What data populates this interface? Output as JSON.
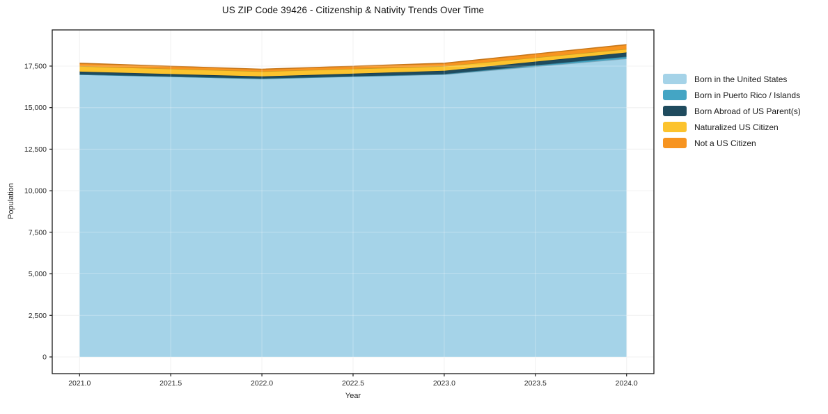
{
  "title": "US ZIP Code 39426 - Citizenship & Nativity Trends Over Time",
  "chart_data": {
    "type": "area",
    "stacked": true,
    "title": "US ZIP Code 39426 - Citizenship & Nativity Trends Over Time",
    "xlabel": "Year",
    "ylabel": "Population",
    "x": [
      2021,
      2022,
      2023,
      2024
    ],
    "series": [
      {
        "name": "Born in the United States",
        "color": "#a5d3e8",
        "values": [
          17000,
          16750,
          17000,
          17950
        ]
      },
      {
        "name": "Born in Puerto Rico / Islands",
        "color": "#44a5c4",
        "values": [
          0,
          0,
          20,
          120
        ]
      },
      {
        "name": "Born Abroad of US Parent(s)",
        "color": "#1f4b5e",
        "values": [
          170,
          130,
          200,
          250
        ]
      },
      {
        "name": "Naturalized US Citizen",
        "color": "#fcc32d",
        "values": [
          330,
          300,
          280,
          210
        ]
      },
      {
        "name": "Not a US Citizen",
        "color": "#f79420",
        "values": [
          170,
          130,
          170,
          260
        ]
      }
    ],
    "xlim": [
      2020.85,
      2024.15
    ],
    "ylim": [
      -1005,
      19676
    ],
    "x_ticks": [
      {
        "v": 2021.0,
        "label": "2021.0"
      },
      {
        "v": 2021.5,
        "label": "2021.5"
      },
      {
        "v": 2022.0,
        "label": "2022.0"
      },
      {
        "v": 2022.5,
        "label": "2022.5"
      },
      {
        "v": 2023.0,
        "label": "2023.0"
      },
      {
        "v": 2023.5,
        "label": "2023.5"
      },
      {
        "v": 2024.0,
        "label": "2024.0"
      }
    ],
    "y_ticks": [
      {
        "v": 0,
        "label": "0"
      },
      {
        "v": 2500,
        "label": "2,500"
      },
      {
        "v": 5000,
        "label": "5,000"
      },
      {
        "v": 7500,
        "label": "7,500"
      },
      {
        "v": 10000,
        "label": "10,000"
      },
      {
        "v": 12500,
        "label": "12,500"
      },
      {
        "v": 15000,
        "label": "15,000"
      },
      {
        "v": 17500,
        "label": "17,500"
      }
    ],
    "grid": true,
    "grid_color": "#ececec",
    "spine_color": "#1a1a1a",
    "tick_label_color": "#262626",
    "legend_position": "right"
  }
}
